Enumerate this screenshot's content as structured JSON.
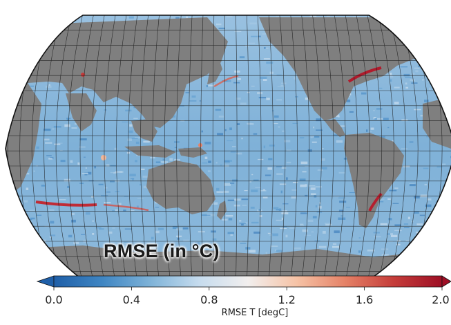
{
  "map": {
    "projection": "Robinson (Pacific-centered)",
    "title": "RMSE (in °C)",
    "land_color": "#7f7f7f",
    "ocean_base_color": "#8ab6d9",
    "graticule": true,
    "legend_position": "bottom"
  },
  "colorbar": {
    "label": "RMSE T [degC]",
    "vmin": 0.0,
    "vmax": 2.0,
    "extend": "both",
    "ticks": [
      "0.0",
      "0.4",
      "0.8",
      "1.2",
      "1.6",
      "2.0"
    ],
    "tick_values": [
      0.0,
      0.4,
      0.8,
      1.2,
      1.6,
      2.0
    ],
    "colormap": [
      "#1f5fa8",
      "#3f86c3",
      "#7fb3d8",
      "#c6dcee",
      "#f2efee",
      "#f6c3a6",
      "#e58267",
      "#c53d3a",
      "#9e0f25"
    ]
  }
}
